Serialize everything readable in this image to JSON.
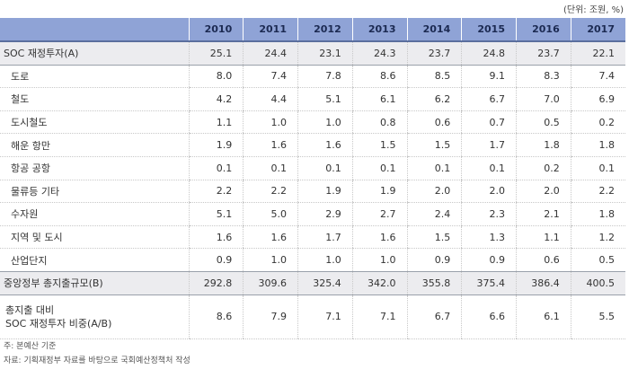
{
  "unit": "(단위: 조원, %)",
  "years": [
    "2010",
    "2011",
    "2012",
    "2013",
    "2014",
    "2015",
    "2016",
    "2017"
  ],
  "rows": [
    {
      "label": "SOC 재정투자(A)",
      "values": [
        "25.1",
        "24.4",
        "23.1",
        "24.3",
        "23.7",
        "24.8",
        "23.7",
        "22.1"
      ]
    },
    {
      "label": "도로",
      "values": [
        "8.0",
        "7.4",
        "7.8",
        "8.6",
        "8.5",
        "9.1",
        "8.3",
        "7.4"
      ]
    },
    {
      "label": "철도",
      "values": [
        "4.2",
        "4.4",
        "5.1",
        "6.1",
        "6.2",
        "6.7",
        "7.0",
        "6.9"
      ]
    },
    {
      "label": "도시철도",
      "values": [
        "1.1",
        "1.0",
        "1.0",
        "0.8",
        "0.6",
        "0.7",
        "0.5",
        "0.2"
      ]
    },
    {
      "label": "해운 항만",
      "values": [
        "1.9",
        "1.6",
        "1.6",
        "1.5",
        "1.5",
        "1.7",
        "1.8",
        "1.8"
      ]
    },
    {
      "label": "항공 공항",
      "values": [
        "0.1",
        "0.1",
        "0.1",
        "0.1",
        "0.1",
        "0.1",
        "0.2",
        "0.1"
      ]
    },
    {
      "label": "물류등 기타",
      "values": [
        "2.2",
        "2.2",
        "1.9",
        "1.9",
        "2.0",
        "2.0",
        "2.0",
        "2.2"
      ]
    },
    {
      "label": "수자원",
      "values": [
        "5.1",
        "5.0",
        "2.9",
        "2.7",
        "2.4",
        "2.3",
        "2.1",
        "1.8"
      ]
    },
    {
      "label": "지역 및 도시",
      "values": [
        "1.6",
        "1.6",
        "1.7",
        "1.6",
        "1.5",
        "1.3",
        "1.1",
        "1.2"
      ]
    },
    {
      "label": "산업단지",
      "values": [
        "0.9",
        "1.0",
        "1.0",
        "1.0",
        "0.9",
        "0.9",
        "0.6",
        "0.5"
      ]
    },
    {
      "label": "중앙정부 총지출규모(B)",
      "values": [
        "292.8",
        "309.6",
        "325.4",
        "342.0",
        "355.8",
        "375.4",
        "386.4",
        "400.5"
      ]
    },
    {
      "label_line1": "총지출 대비",
      "label_line2": "SOC 재정투자 비중(A/B)",
      "values": [
        "8.6",
        "7.9",
        "7.1",
        "7.1",
        "6.7",
        "6.6",
        "6.1",
        "5.5"
      ]
    }
  ],
  "notes": {
    "note1": "주: 본예산 기준",
    "note2": "자료: 기획재정부 자료를 바탕으로 국회예산정책처 작성"
  }
}
